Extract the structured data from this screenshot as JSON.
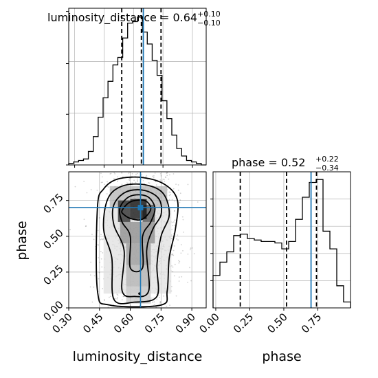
{
  "chart_data": [
    {
      "panel": "luminosity_distance-marginal",
      "type": "histogram",
      "title_name": "luminosity_distance",
      "title_value": "0.64",
      "title_upper": "+0.10",
      "title_lower": "−0.10",
      "xlim": [
        0.27,
        0.97
      ],
      "bin_edges": [
        0.27,
        0.295,
        0.32,
        0.345,
        0.37,
        0.395,
        0.42,
        0.445,
        0.47,
        0.495,
        0.52,
        0.545,
        0.57,
        0.595,
        0.62,
        0.645,
        0.67,
        0.695,
        0.72,
        0.745,
        0.77,
        0.795,
        0.82,
        0.845,
        0.87,
        0.895,
        0.92,
        0.945,
        0.97
      ],
      "counts": [
        1,
        2,
        3,
        4,
        9,
        19,
        32,
        45,
        56,
        67,
        72,
        85,
        95,
        96,
        99,
        89,
        81,
        70,
        60,
        43,
        31,
        20,
        11,
        6,
        3,
        2,
        1,
        0
      ],
      "quantile_lines": [
        0.54,
        0.64,
        0.74
      ],
      "truth": 0.65,
      "color_truth": "#1f77b4"
    },
    {
      "panel": "phase-marginal",
      "type": "histogram",
      "title_name": "phase",
      "title_value": "0.52",
      "title_upper": "+0.22",
      "title_lower": "−0.34",
      "xlim": [
        -0.02,
        0.99
      ],
      "xticks": [
        "0.00",
        "0.25",
        "0.50",
        "0.75"
      ],
      "xticks_values": [
        0,
        0.25,
        0.5,
        0.75
      ],
      "xlabel": "phase",
      "bin_edges": [
        -0.02,
        0.0305,
        0.081,
        0.1315,
        0.182,
        0.2325,
        0.283,
        0.3335,
        0.384,
        0.4345,
        0.485,
        0.5355,
        0.586,
        0.6365,
        0.687,
        0.7375,
        0.788,
        0.8385,
        0.889,
        0.939,
        0.99
      ],
      "counts": [
        22,
        31,
        38,
        49,
        50,
        47,
        46,
        45,
        45,
        44,
        40,
        45,
        60,
        75,
        85,
        87,
        52,
        40,
        15,
        4
      ],
      "quantile_lines": [
        0.18,
        0.52,
        0.74
      ],
      "truth": 0.7,
      "color_truth": "#1f77b4"
    },
    {
      "panel": "joint-2d",
      "type": "corner-2d-density",
      "xlim": [
        0.3,
        0.97
      ],
      "ylim": [
        0.0,
        0.95
      ],
      "xticks": [
        "0.30",
        "0.45",
        "0.60",
        "0.75",
        "0.90"
      ],
      "xticks_values": [
        0.3,
        0.45,
        0.6,
        0.75,
        0.9
      ],
      "yticks": [
        "0.00",
        "0.25",
        "0.50",
        "0.75"
      ],
      "yticks_values": [
        0,
        0.25,
        0.5,
        0.75
      ],
      "xlabel": "luminosity_distance",
      "ylabel": "phase",
      "truth": [
        0.65,
        0.7
      ],
      "color_truth": "#1f77b4",
      "contours": [
        [
          [
            0.44,
            0.12
          ],
          [
            0.44,
            0.7
          ],
          [
            0.47,
            0.83
          ],
          [
            0.54,
            0.9
          ],
          [
            0.66,
            0.91
          ],
          [
            0.77,
            0.86
          ],
          [
            0.83,
            0.75
          ],
          [
            0.82,
            0.55
          ],
          [
            0.79,
            0.35
          ],
          [
            0.78,
            0.12
          ],
          [
            0.75,
            0.02
          ],
          [
            0.5,
            0.02
          ]
        ],
        [
          [
            0.52,
            0.06
          ],
          [
            0.51,
            0.35
          ],
          [
            0.47,
            0.55
          ],
          [
            0.49,
            0.76
          ],
          [
            0.56,
            0.85
          ],
          [
            0.67,
            0.86
          ],
          [
            0.76,
            0.8
          ],
          [
            0.79,
            0.65
          ],
          [
            0.75,
            0.5
          ],
          [
            0.73,
            0.3
          ],
          [
            0.73,
            0.08
          ],
          [
            0.62,
            0.04
          ]
        ],
        [
          [
            0.56,
            0.12
          ],
          [
            0.57,
            0.4
          ],
          [
            0.52,
            0.58
          ],
          [
            0.52,
            0.72
          ],
          [
            0.58,
            0.81
          ],
          [
            0.67,
            0.82
          ],
          [
            0.74,
            0.76
          ],
          [
            0.75,
            0.65
          ],
          [
            0.71,
            0.55
          ],
          [
            0.68,
            0.4
          ],
          [
            0.69,
            0.12
          ],
          [
            0.62,
            0.08
          ]
        ],
        [
          [
            0.6,
            0.28
          ],
          [
            0.6,
            0.5
          ],
          [
            0.56,
            0.6
          ],
          [
            0.55,
            0.7
          ],
          [
            0.6,
            0.78
          ],
          [
            0.68,
            0.78
          ],
          [
            0.72,
            0.7
          ],
          [
            0.7,
            0.6
          ],
          [
            0.66,
            0.5
          ],
          [
            0.66,
            0.28
          ]
        ],
        [
          [
            0.57,
            0.65
          ],
          [
            0.56,
            0.68
          ],
          [
            0.6,
            0.74
          ],
          [
            0.67,
            0.75
          ],
          [
            0.7,
            0.69
          ],
          [
            0.66,
            0.62
          ],
          [
            0.61,
            0.62
          ]
        ]
      ],
      "density_cells": [
        {
          "x": [
            0.54,
            0.6
          ],
          "y": [
            0.6,
            0.75
          ],
          "level": 0.85
        },
        {
          "x": [
            0.6,
            0.68
          ],
          "y": [
            0.62,
            0.76
          ],
          "level": 0.95
        },
        {
          "x": [
            0.66,
            0.72
          ],
          "y": [
            0.6,
            0.72
          ],
          "level": 0.7
        },
        {
          "x": [
            0.55,
            0.72
          ],
          "y": [
            0.45,
            0.6
          ],
          "level": 0.45
        },
        {
          "x": [
            0.58,
            0.7
          ],
          "y": [
            0.3,
            0.45
          ],
          "level": 0.4
        },
        {
          "x": [
            0.58,
            0.7
          ],
          "y": [
            0.15,
            0.3
          ],
          "level": 0.3
        },
        {
          "x": [
            0.58,
            0.7
          ],
          "y": [
            0.03,
            0.15
          ],
          "level": 0.22
        },
        {
          "x": [
            0.5,
            0.78
          ],
          "y": [
            0.7,
            0.85
          ],
          "level": 0.3
        },
        {
          "x": [
            0.47,
            0.8
          ],
          "y": [
            0.1,
            0.7
          ],
          "level": 0.12
        }
      ],
      "scatter_density": {
        "mean": [
          0.645,
          0.5
        ],
        "std": [
          0.09,
          0.3
        ],
        "count": 1600
      }
    }
  ]
}
